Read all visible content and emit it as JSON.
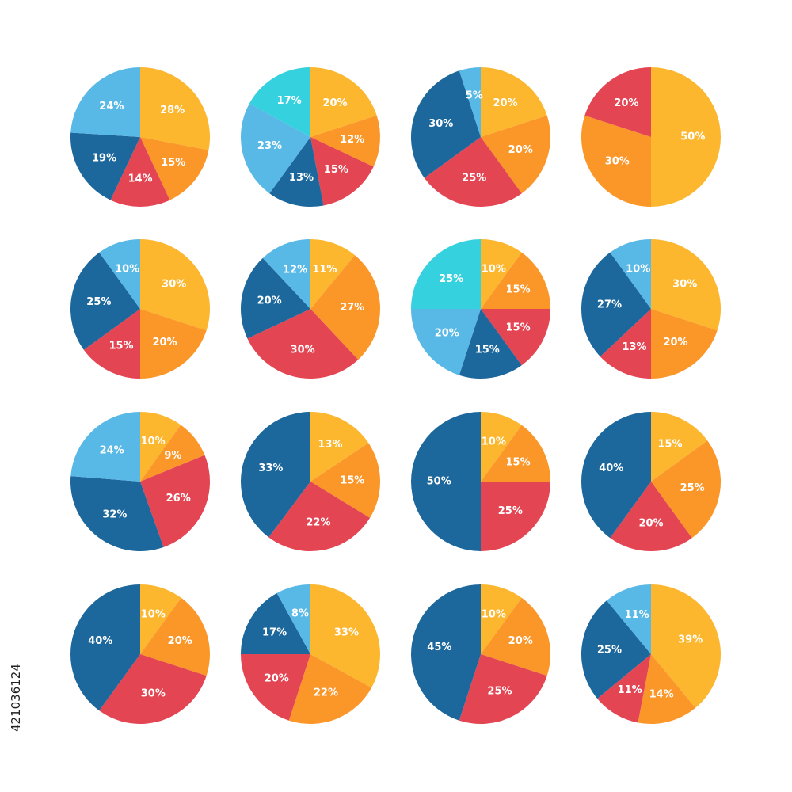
{
  "colors": {
    "yellow": "#FCB72F",
    "orange": "#FB9628",
    "red": "#E44553",
    "blue": "#1C679C",
    "light_blue": "#58B8E6",
    "cyan": "#35D1DE"
  },
  "stock_id": "421036124",
  "chart_data": [
    {
      "type": "pie",
      "slices": [
        {
          "label": "28%",
          "value": 28,
          "color": "yellow"
        },
        {
          "label": "15%",
          "value": 15,
          "color": "orange"
        },
        {
          "label": "14%",
          "value": 14,
          "color": "red"
        },
        {
          "label": "19%",
          "value": 19,
          "color": "blue"
        },
        {
          "label": "24%",
          "value": 24,
          "color": "light_blue"
        }
      ]
    },
    {
      "type": "pie",
      "slices": [
        {
          "label": "20%",
          "value": 20,
          "color": "yellow"
        },
        {
          "label": "12%",
          "value": 12,
          "color": "orange"
        },
        {
          "label": "15%",
          "value": 15,
          "color": "red"
        },
        {
          "label": "13%",
          "value": 13,
          "color": "blue"
        },
        {
          "label": "23%",
          "value": 23,
          "color": "light_blue"
        },
        {
          "label": "17%",
          "value": 17,
          "color": "cyan"
        }
      ]
    },
    {
      "type": "pie",
      "slices": [
        {
          "label": "20%",
          "value": 20,
          "color": "yellow"
        },
        {
          "label": "20%",
          "value": 20,
          "color": "orange"
        },
        {
          "label": "25%",
          "value": 25,
          "color": "red"
        },
        {
          "label": "30%",
          "value": 30,
          "color": "blue"
        },
        {
          "label": "5%",
          "value": 5,
          "color": "light_blue"
        }
      ]
    },
    {
      "type": "pie",
      "slices": [
        {
          "label": "50%",
          "value": 50,
          "color": "yellow"
        },
        {
          "label": "30%",
          "value": 30,
          "color": "orange"
        },
        {
          "label": "20%",
          "value": 20,
          "color": "red"
        }
      ]
    },
    {
      "type": "pie",
      "slices": [
        {
          "label": "30%",
          "value": 30,
          "color": "yellow"
        },
        {
          "label": "20%",
          "value": 20,
          "color": "orange"
        },
        {
          "label": "15%",
          "value": 15,
          "color": "red"
        },
        {
          "label": "25%",
          "value": 25,
          "color": "blue"
        },
        {
          "label": "10%",
          "value": 10,
          "color": "light_blue"
        }
      ]
    },
    {
      "type": "pie",
      "slices": [
        {
          "label": "11%",
          "value": 11,
          "color": "yellow"
        },
        {
          "label": "27%",
          "value": 27,
          "color": "orange"
        },
        {
          "label": "30%",
          "value": 30,
          "color": "red"
        },
        {
          "label": "20%",
          "value": 20,
          "color": "blue"
        },
        {
          "label": "12%",
          "value": 12,
          "color": "light_blue"
        }
      ]
    },
    {
      "type": "pie",
      "slices": [
        {
          "label": "10%",
          "value": 10,
          "color": "yellow"
        },
        {
          "label": "15%",
          "value": 15,
          "color": "orange"
        },
        {
          "label": "15%",
          "value": 15,
          "color": "red"
        },
        {
          "label": "15%",
          "value": 15,
          "color": "blue"
        },
        {
          "label": "20%",
          "value": 20,
          "color": "light_blue"
        },
        {
          "label": "25%",
          "value": 25,
          "color": "cyan"
        }
      ]
    },
    {
      "type": "pie",
      "slices": [
        {
          "label": "30%",
          "value": 30,
          "color": "yellow"
        },
        {
          "label": "20%",
          "value": 20,
          "color": "orange"
        },
        {
          "label": "13%",
          "value": 13,
          "color": "red"
        },
        {
          "label": "27%",
          "value": 27,
          "color": "blue"
        },
        {
          "label": "10%",
          "value": 10,
          "color": "light_blue"
        }
      ]
    },
    {
      "type": "pie",
      "slices": [
        {
          "label": "10%",
          "value": 10,
          "color": "yellow"
        },
        {
          "label": "9%",
          "value": 9,
          "color": "orange"
        },
        {
          "label": "26%",
          "value": 26,
          "color": "red"
        },
        {
          "label": "32%",
          "value": 32,
          "color": "blue"
        },
        {
          "label": "24%",
          "value": 24,
          "color": "light_blue"
        }
      ]
    },
    {
      "type": "pie",
      "slices": [
        {
          "label": "13%",
          "value": 13,
          "color": "yellow"
        },
        {
          "label": "15%",
          "value": 15,
          "color": "orange"
        },
        {
          "label": "22%",
          "value": 22,
          "color": "red"
        },
        {
          "label": "33%",
          "value": 33,
          "color": "blue"
        }
      ]
    },
    {
      "type": "pie",
      "slices": [
        {
          "label": "10%",
          "value": 10,
          "color": "yellow"
        },
        {
          "label": "15%",
          "value": 15,
          "color": "orange"
        },
        {
          "label": "25%",
          "value": 25,
          "color": "red"
        },
        {
          "label": "50%",
          "value": 50,
          "color": "blue"
        }
      ]
    },
    {
      "type": "pie",
      "slices": [
        {
          "label": "15%",
          "value": 15,
          "color": "yellow"
        },
        {
          "label": "25%",
          "value": 25,
          "color": "orange"
        },
        {
          "label": "20%",
          "value": 20,
          "color": "red"
        },
        {
          "label": "40%",
          "value": 40,
          "color": "blue"
        }
      ]
    },
    {
      "type": "pie",
      "slices": [
        {
          "label": "10%",
          "value": 10,
          "color": "yellow"
        },
        {
          "label": "20%",
          "value": 20,
          "color": "orange"
        },
        {
          "label": "30%",
          "value": 30,
          "color": "red"
        },
        {
          "label": "40%",
          "value": 40,
          "color": "blue"
        }
      ]
    },
    {
      "type": "pie",
      "slices": [
        {
          "label": "33%",
          "value": 33,
          "color": "yellow"
        },
        {
          "label": "22%",
          "value": 22,
          "color": "orange"
        },
        {
          "label": "20%",
          "value": 20,
          "color": "red"
        },
        {
          "label": "17%",
          "value": 17,
          "color": "blue"
        },
        {
          "label": "8%",
          "value": 8,
          "color": "light_blue"
        }
      ]
    },
    {
      "type": "pie",
      "slices": [
        {
          "label": "10%",
          "value": 10,
          "color": "yellow"
        },
        {
          "label": "20%",
          "value": 20,
          "color": "orange"
        },
        {
          "label": "25%",
          "value": 25,
          "color": "red"
        },
        {
          "label": "45%",
          "value": 45,
          "color": "blue"
        }
      ]
    },
    {
      "type": "pie",
      "slices": [
        {
          "label": "39%",
          "value": 39,
          "color": "yellow"
        },
        {
          "label": "14%",
          "value": 14,
          "color": "orange"
        },
        {
          "label": "11%",
          "value": 11,
          "color": "red"
        },
        {
          "label": "25%",
          "value": 25,
          "color": "blue"
        },
        {
          "label": "11%",
          "value": 11,
          "color": "light_blue"
        }
      ]
    }
  ]
}
